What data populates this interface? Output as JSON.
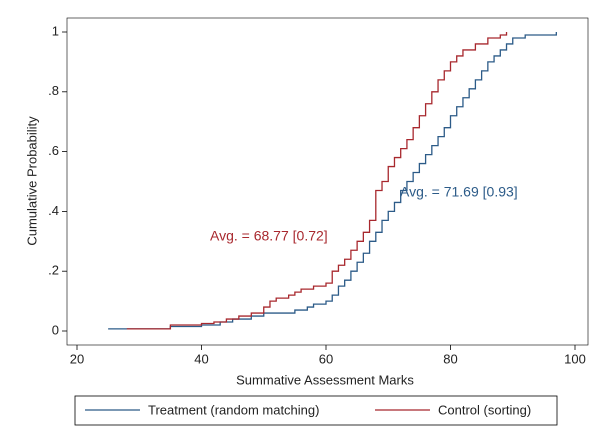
{
  "chart_data": {
    "type": "line",
    "step": "post",
    "xlabel": "Summative Assessment Marks",
    "ylabel": "Cumulative Probability",
    "xlim": [
      20,
      100
    ],
    "xticks": [
      20,
      40,
      60,
      80,
      100
    ],
    "ylim": [
      0,
      1
    ],
    "yticks": [
      0,
      {
        "value": 0.2,
        "label": ".2"
      },
      {
        "value": 0.4,
        "label": ".4"
      },
      {
        "value": 0.6,
        "label": ".6"
      },
      {
        "value": 0.8,
        "label": ".8"
      },
      1
    ],
    "legend": "bottom",
    "annotations": [
      "Avg. = 71.69 [0.93]",
      "Avg. = 68.77 [0.72]"
    ],
    "series": [
      {
        "name": "Treatment (random matching)",
        "color": "#2c5b88",
        "x": [
          25,
          35,
          40,
          43,
          45,
          48,
          50,
          55,
          57,
          58,
          60,
          61,
          62,
          63,
          64,
          65,
          66,
          67,
          68,
          69,
          70,
          71,
          72,
          73,
          74,
          75,
          76,
          77,
          78,
          79,
          80,
          81,
          82,
          83,
          84,
          85,
          86,
          87,
          88,
          89,
          90,
          92,
          97
        ],
        "values": [
          0.007,
          0.015,
          0.02,
          0.03,
          0.04,
          0.05,
          0.06,
          0.07,
          0.08,
          0.09,
          0.1,
          0.12,
          0.15,
          0.17,
          0.2,
          0.23,
          0.26,
          0.3,
          0.33,
          0.37,
          0.4,
          0.43,
          0.47,
          0.5,
          0.53,
          0.56,
          0.59,
          0.62,
          0.65,
          0.68,
          0.72,
          0.75,
          0.78,
          0.81,
          0.84,
          0.87,
          0.9,
          0.92,
          0.94,
          0.96,
          0.98,
          0.99,
          1
        ]
      },
      {
        "name": "Control (sorting)",
        "color": "#a8282e",
        "x": [
          28,
          35,
          40,
          42,
          44,
          46,
          48,
          50,
          51,
          52,
          54,
          55,
          56,
          58,
          60,
          61,
          62,
          63,
          64,
          65,
          66,
          67,
          68,
          69,
          70,
          71,
          72,
          73,
          74,
          75,
          76,
          77,
          78,
          79,
          80,
          81,
          82,
          84,
          86,
          88,
          89
        ],
        "values": [
          0.007,
          0.02,
          0.025,
          0.03,
          0.04,
          0.05,
          0.06,
          0.08,
          0.1,
          0.11,
          0.12,
          0.13,
          0.14,
          0.15,
          0.16,
          0.2,
          0.22,
          0.24,
          0.27,
          0.3,
          0.33,
          0.37,
          0.47,
          0.5,
          0.55,
          0.58,
          0.61,
          0.64,
          0.68,
          0.72,
          0.76,
          0.8,
          0.84,
          0.87,
          0.9,
          0.92,
          0.94,
          0.96,
          0.98,
          0.99,
          1
        ]
      }
    ]
  }
}
